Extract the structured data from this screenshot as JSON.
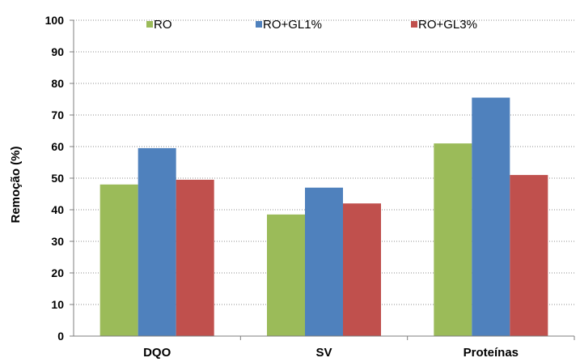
{
  "chart_data": {
    "type": "bar",
    "title": "",
    "xlabel": "",
    "ylabel": "Remoção (%)",
    "ylim": [
      0,
      100
    ],
    "yticks": [
      0,
      10,
      20,
      30,
      40,
      50,
      60,
      70,
      80,
      90,
      100
    ],
    "grid": true,
    "legend_position": "top",
    "categories": [
      "DQO",
      "SV",
      "Proteínas"
    ],
    "series": [
      {
        "name": "RO",
        "color": "#9bbb59",
        "values": [
          48,
          38.5,
          61
        ]
      },
      {
        "name": "RO+GL1%",
        "color": "#4f81bd",
        "values": [
          59.5,
          47,
          75.5
        ]
      },
      {
        "name": "RO+GL3%",
        "color": "#c0504d",
        "values": [
          49.5,
          42,
          51
        ]
      }
    ]
  }
}
